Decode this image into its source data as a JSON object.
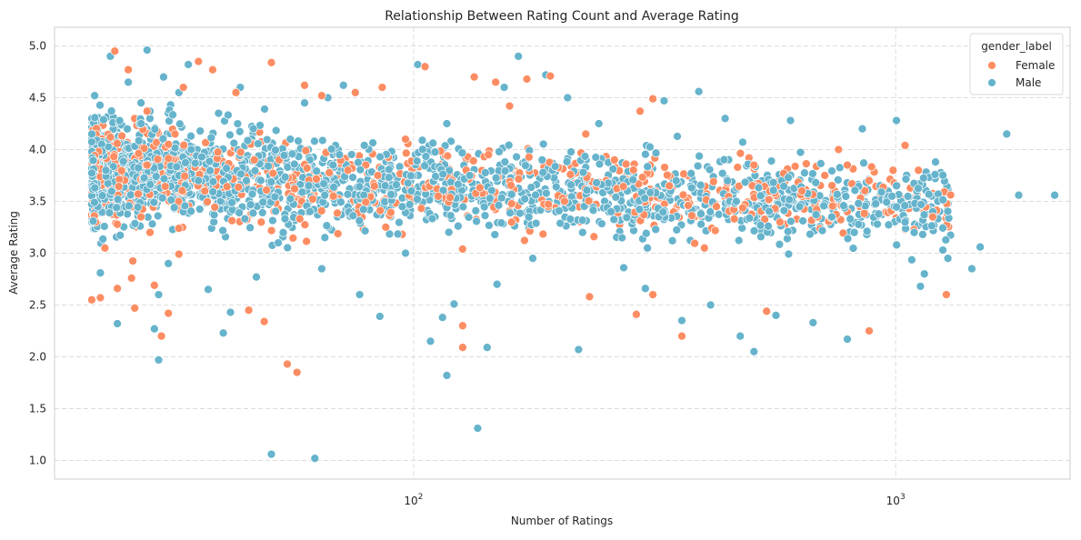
{
  "chart_data": {
    "type": "scatter",
    "title": "Relationship Between Rating Count and Average Rating",
    "xlabel": "Number of Ratings",
    "ylabel": "Average Rating",
    "xscale": "log",
    "xlim": [
      18,
      2300
    ],
    "ylim": [
      0.82,
      5.18
    ],
    "x_ticks": [
      {
        "value": 100,
        "base": "10",
        "exp": "2"
      },
      {
        "value": 1000,
        "base": "10",
        "exp": "3"
      }
    ],
    "y_ticks": [
      "1.0",
      "1.5",
      "2.0",
      "2.5",
      "3.0",
      "3.5",
      "4.0",
      "4.5",
      "5.0"
    ],
    "grid": true,
    "legend": {
      "title": "gender_label",
      "placement": "top-right",
      "entries": [
        {
          "name": "Female",
          "color": "#fc8d62"
        },
        {
          "name": "Male",
          "color": "#66b3cc"
        }
      ]
    },
    "series": [
      {
        "name": "Female",
        "color": "#fc8d62",
        "points": [
          [
            21.5,
            2.55
          ],
          [
            22.4,
            2.57
          ],
          [
            22.9,
            3.05
          ],
          [
            23.5,
            4.12
          ],
          [
            24.0,
            4.95
          ],
          [
            24.3,
            2.66
          ],
          [
            25.6,
            4.77
          ],
          [
            26.0,
            2.76
          ],
          [
            26.4,
            2.47
          ],
          [
            27.2,
            3.35
          ],
          [
            28.0,
            4.37
          ],
          [
            28.4,
            3.2
          ],
          [
            29.0,
            2.69
          ],
          [
            30.0,
            2.2
          ],
          [
            31.0,
            2.42
          ],
          [
            32.0,
            4.15
          ],
          [
            32.6,
            2.99
          ],
          [
            33.3,
            4.6
          ],
          [
            35.8,
            4.85
          ],
          [
            38.3,
            4.77
          ],
          [
            42.8,
            4.55
          ],
          [
            45.5,
            2.45
          ],
          [
            49.0,
            2.34
          ],
          [
            50.7,
            4.84
          ],
          [
            54.7,
            1.93
          ],
          [
            57.3,
            1.85
          ],
          [
            59.4,
            4.62
          ],
          [
            64.5,
            4.52
          ],
          [
            75.7,
            4.55
          ],
          [
            86.1,
            4.6
          ],
          [
            105.6,
            4.8
          ],
          [
            126.4,
            2.3
          ],
          [
            126.4,
            2.09
          ],
          [
            133.6,
            4.7
          ],
          [
            148.0,
            4.65
          ],
          [
            158.2,
            4.42
          ],
          [
            171.8,
            4.68
          ],
          [
            192.1,
            4.71
          ],
          [
            231.7,
            2.58
          ],
          [
            289.8,
            2.41
          ],
          [
            294.9,
            4.37
          ],
          [
            313.6,
            4.49
          ],
          [
            313.6,
            2.6
          ],
          [
            360.1,
            2.2
          ],
          [
            539.9,
            2.44
          ],
          [
            760.9,
            4.0
          ],
          [
            793.8,
            3.85
          ],
          [
            880.8,
            2.25
          ],
          [
            987.6,
            3.8
          ],
          [
            1045.9,
            4.04
          ],
          [
            1114.7,
            3.8
          ],
          [
            1193.3,
            3.35
          ],
          [
            1273.6,
            2.6
          ],
          [
            60.1,
            3.82
          ],
          [
            84.3,
            3.75
          ],
          [
            112.5,
            3.55
          ],
          [
            143.0,
            3.95
          ],
          [
            205.6,
            3.5
          ],
          [
            260.9,
            3.9
          ],
          [
            339.2,
            3.65
          ],
          [
            424.8,
            3.45
          ],
          [
            508.1,
            3.85
          ],
          [
            638.8,
            3.6
          ],
          [
            712.7,
            3.75
          ],
          [
            46.7,
            3.9
          ],
          [
            36.9,
            3.6
          ],
          [
            28.0,
            3.85
          ],
          [
            31.0,
            4.05
          ],
          [
            48.3,
            3.3
          ],
          [
            73.1,
            3.8
          ],
          [
            96.2,
            4.1
          ],
          [
            159.7,
            3.3
          ],
          [
            227.6,
            4.15
          ],
          [
            401.1,
            3.05
          ],
          [
            575.3,
            3.3
          ],
          [
            880.8,
            3.7
          ]
        ]
      },
      {
        "name": "Male",
        "color": "#66b3cc",
        "points": [
          [
            21.8,
            4.52
          ],
          [
            22.4,
            2.81
          ],
          [
            23.5,
            4.9
          ],
          [
            24.3,
            2.32
          ],
          [
            25.6,
            4.65
          ],
          [
            27.2,
            4.45
          ],
          [
            28.0,
            4.96
          ],
          [
            28.4,
            4.37
          ],
          [
            29.0,
            2.27
          ],
          [
            29.6,
            2.6
          ],
          [
            29.6,
            1.97
          ],
          [
            30.3,
            4.7
          ],
          [
            31.0,
            2.9
          ],
          [
            32.6,
            4.55
          ],
          [
            34.1,
            4.82
          ],
          [
            35.8,
            3.7
          ],
          [
            37.5,
            2.65
          ],
          [
            39.4,
            4.35
          ],
          [
            40.3,
            2.23
          ],
          [
            41.7,
            2.43
          ],
          [
            43.7,
            4.6
          ],
          [
            47.2,
            2.77
          ],
          [
            50.7,
            1.06
          ],
          [
            52.4,
            3.1
          ],
          [
            59.4,
            4.45
          ],
          [
            62.4,
            1.02
          ],
          [
            64.5,
            2.85
          ],
          [
            66.4,
            4.5
          ],
          [
            71.5,
            4.62
          ],
          [
            77.3,
            2.6
          ],
          [
            85.1,
            2.39
          ],
          [
            96.2,
            3.0
          ],
          [
            102.0,
            4.82
          ],
          [
            108.4,
            2.15
          ],
          [
            114.8,
            2.38
          ],
          [
            117.2,
            1.82
          ],
          [
            121.3,
            2.51
          ],
          [
            135.8,
            1.31
          ],
          [
            142.1,
            2.09
          ],
          [
            149.0,
            2.7
          ],
          [
            154.2,
            4.6
          ],
          [
            165.0,
            4.9
          ],
          [
            176.7,
            2.95
          ],
          [
            188.1,
            4.72
          ],
          [
            208.7,
            4.5
          ],
          [
            219.9,
            2.07
          ],
          [
            242.3,
            4.25
          ],
          [
            272.8,
            2.86
          ],
          [
            302.4,
            2.66
          ],
          [
            330.8,
            4.47
          ],
          [
            360.1,
            2.35
          ],
          [
            390.4,
            4.56
          ],
          [
            413.1,
            2.5
          ],
          [
            442.8,
            4.3
          ],
          [
            476.0,
            2.2
          ],
          [
            508.1,
            2.05
          ],
          [
            564.6,
            2.4
          ],
          [
            605.2,
            4.28
          ],
          [
            673.9,
            2.33
          ],
          [
            737.1,
            3.35
          ],
          [
            793.8,
            2.17
          ],
          [
            852.9,
            4.2
          ],
          [
            916.0,
            3.28
          ],
          [
            982.4,
            3.55
          ],
          [
            1003.6,
            4.28
          ],
          [
            1045.9,
            3.3
          ],
          [
            1092.3,
            3.2
          ],
          [
            1146.5,
            2.8
          ],
          [
            1206.2,
            3.76
          ],
          [
            1252.6,
            3.03
          ],
          [
            1282.9,
            2.95
          ],
          [
            1438.2,
            2.85
          ],
          [
            1497.3,
            3.06
          ],
          [
            1699.6,
            4.15
          ],
          [
            1799.4,
            3.56
          ],
          [
            2136.4,
            3.56
          ],
          [
            23.0,
            3.8
          ],
          [
            45.0,
            3.7
          ],
          [
            70.2,
            3.95
          ],
          [
            98.9,
            3.6
          ],
          [
            130.8,
            3.75
          ],
          [
            184.8,
            3.9
          ],
          [
            256.8,
            3.4
          ],
          [
            350.4,
            3.7
          ],
          [
            467.2,
            3.5
          ],
          [
            631.9,
            3.45
          ],
          [
            820.3,
            3.2
          ],
          [
            1193.3,
            3.4
          ],
          [
            55.5,
            4.1
          ],
          [
            117.2,
            4.25
          ],
          [
            224.2,
            3.2
          ],
          [
            305.5,
            3.05
          ],
          [
            1003.6,
            3.65
          ],
          [
            1125.6,
            2.68
          ],
          [
            1209.4,
            3.88
          ]
        ]
      }
    ]
  }
}
